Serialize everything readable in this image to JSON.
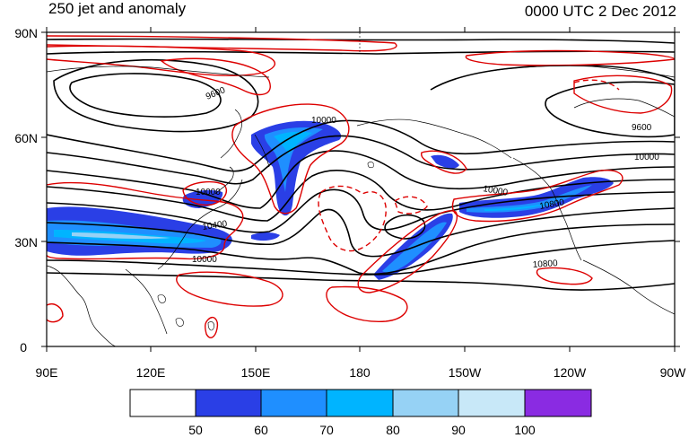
{
  "title": "250 jet and anomaly",
  "timestamp": "0000 UTC 2 Dec 2012",
  "lat_labels": [
    "90N",
    "60N",
    "30N",
    "0"
  ],
  "lon_labels": [
    "90E",
    "120E",
    "150E",
    "180",
    "150W",
    "120W",
    "90W"
  ],
  "contour_labels": [
    "9600",
    "10000",
    "9600",
    "10000",
    "10000",
    "10400",
    "10000",
    "10000",
    "10800",
    "10800"
  ],
  "colorbar": {
    "labels": [
      "50",
      "60",
      "70",
      "80",
      "90",
      "100"
    ],
    "colors": [
      "#ffffff",
      "#2a3fe6",
      "#1f8fff",
      "#00b4ff",
      "#96d2f5",
      "#c8e8f8",
      "#8a2be2"
    ]
  },
  "colors": {
    "land": "#000000",
    "height_contour": "#000000",
    "anomaly_contour": "#dd0000"
  }
}
